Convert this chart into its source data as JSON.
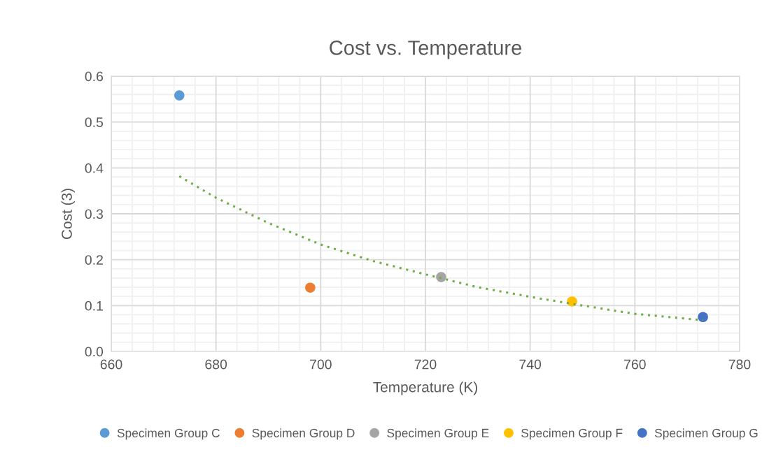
{
  "chart_data": {
    "type": "scatter",
    "title": "Cost vs. Temperature",
    "xlabel": "Temperature (K)",
    "ylabel": "Cost (3)",
    "xlim": [
      660,
      780
    ],
    "xticks": [
      660,
      {
        "value": 664,
        "label": null
      },
      {
        "value": 668,
        "label": null
      },
      {
        "value": 672,
        "label": null
      },
      {
        "value": 676,
        "label": null
      },
      680,
      {
        "value": 684,
        "label": null
      },
      {
        "value": 688,
        "label": null
      },
      {
        "value": 692,
        "label": null
      },
      {
        "value": 696,
        "label": null
      },
      700,
      {
        "value": 704,
        "label": null
      },
      {
        "value": 708,
        "label": null
      },
      {
        "value": 712,
        "label": null
      },
      {
        "value": 716,
        "label": null
      },
      720,
      {
        "value": 724,
        "label": null
      },
      {
        "value": 728,
        "label": null
      },
      {
        "value": 732,
        "label": null
      },
      {
        "value": 736,
        "label": null
      },
      740,
      {
        "value": 744,
        "label": null
      },
      {
        "value": 748,
        "label": null
      },
      {
        "value": 752,
        "label": null
      },
      {
        "value": 756,
        "label": null
      },
      760,
      {
        "value": 764,
        "label": null
      },
      {
        "value": 768,
        "label": null
      },
      {
        "value": 772,
        "label": null
      },
      {
        "value": 776,
        "label": null
      },
      780
    ],
    "ylim": [
      0,
      0.6
    ],
    "yticks": [
      {
        "value": 0,
        "label": "0.0"
      },
      {
        "value": 0.02,
        "label": null
      },
      {
        "value": 0.04,
        "label": null
      },
      {
        "value": 0.06,
        "label": null
      },
      {
        "value": 0.08,
        "label": null
      },
      0.1,
      {
        "value": 0.12,
        "label": null
      },
      {
        "value": 0.14,
        "label": null
      },
      {
        "value": 0.16,
        "label": null
      },
      {
        "value": 0.18,
        "label": null
      },
      0.2,
      {
        "value": 0.22,
        "label": null
      },
      {
        "value": 0.24,
        "label": null
      },
      {
        "value": 0.26,
        "label": null
      },
      {
        "value": 0.28,
        "label": null
      },
      0.3,
      {
        "value": 0.32,
        "label": null
      },
      {
        "value": 0.34,
        "label": null
      },
      {
        "value": 0.36,
        "label": null
      },
      {
        "value": 0.38,
        "label": null
      },
      0.4,
      {
        "value": 0.42,
        "label": null
      },
      {
        "value": 0.44,
        "label": null
      },
      {
        "value": 0.46,
        "label": null
      },
      {
        "value": 0.48,
        "label": null
      },
      0.5,
      {
        "value": 0.52,
        "label": null
      },
      {
        "value": 0.54,
        "label": null
      },
      {
        "value": 0.56,
        "label": null
      },
      {
        "value": 0.58,
        "label": null
      },
      0.6
    ],
    "grid": true,
    "legend": "bottom",
    "marker": "circle",
    "series": [
      {
        "name": "Specimen Group C",
        "color": "#5b9bd5",
        "x": [
          673
        ],
        "values": [
          0.558
        ]
      },
      {
        "name": "Specimen Group D",
        "color": "#ed7d31",
        "x": [
          698
        ],
        "values": [
          0.139
        ]
      },
      {
        "name": "Specimen Group E",
        "color": "#a5a5a5",
        "x": [
          723
        ],
        "values": [
          0.162
        ]
      },
      {
        "name": "Specimen Group F",
        "color": "#ffc000",
        "x": [
          748
        ],
        "values": [
          0.109
        ]
      },
      {
        "name": "Specimen Group G",
        "color": "#4472c4",
        "x": [
          773
        ],
        "values": [
          0.075
        ]
      },
      {
        "type": "line",
        "color": "#70ad47",
        "line_style": "dotted",
        "marker": "none",
        "x": [
          673,
          680,
          690,
          700,
          710,
          720,
          730,
          740,
          750,
          760,
          773
        ],
        "values": [
          0.382,
          0.335,
          0.28,
          0.233,
          0.197,
          0.168,
          0.14,
          0.119,
          0.1,
          0.082,
          0.068
        ]
      }
    ]
  }
}
